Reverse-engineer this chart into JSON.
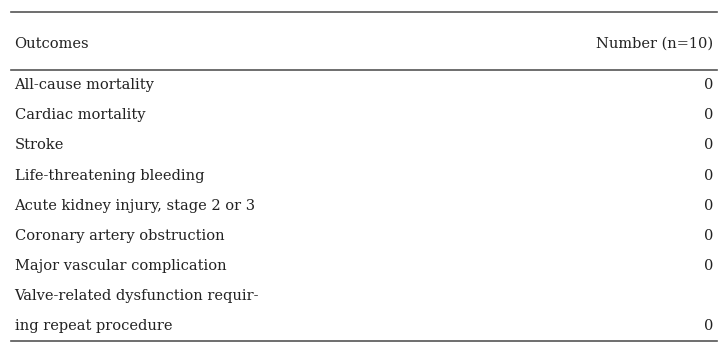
{
  "col_headers": [
    "Outcomes",
    "Number (n=10)"
  ],
  "rows": [
    [
      "All-cause mortality",
      "0"
    ],
    [
      "Cardiac mortality",
      "0"
    ],
    [
      "Stroke",
      "0"
    ],
    [
      "Life-threatening bleeding",
      "0"
    ],
    [
      "Acute kidney injury, stage 2 or 3",
      "0"
    ],
    [
      "Coronary artery obstruction",
      "0"
    ],
    [
      "Major vascular complication",
      "0"
    ],
    [
      "Valve-related dysfunction requir-\ning repeat procedure",
      "0"
    ]
  ],
  "bg_color": "#ffffff",
  "line_color": "#555555",
  "text_color": "#222222",
  "font_size": 10.5,
  "header_font_size": 10.5
}
